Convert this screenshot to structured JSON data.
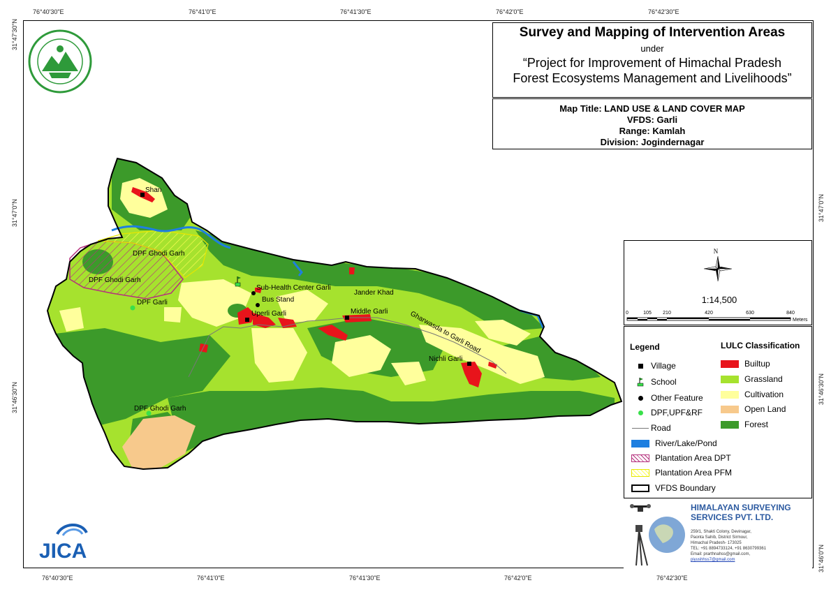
{
  "coords": {
    "top": [
      "76°40'30\"E",
      "76°41'0\"E",
      "76°41'30\"E",
      "76°42'0\"E",
      "76°42'30\"E"
    ],
    "bottom": [
      "76°40'30\"E",
      "76°41'0\"E",
      "76°41'30\"E",
      "76°42'0\"E",
      "76°42'30\"E"
    ],
    "left": [
      "31°47'30\"N",
      "31°47'0\"N",
      "31°46'30\"N"
    ],
    "right": [
      "31°47'0\"N",
      "31°46'30\"N",
      "31°46'0\"N"
    ]
  },
  "title": {
    "main": "Survey and Mapping of Intervention Areas",
    "under": "under",
    "project_line1": "“Project for Improvement of Himachal Pradesh",
    "project_line2": "Forest Ecosystems Management and Livelihoods”"
  },
  "info": {
    "map_title": "Map Title: LAND USE & LAND COVER MAP",
    "vfds": "VFDS: Garli",
    "range": "Range: Kamlah",
    "division": "Division: Jogindernagar"
  },
  "scale": {
    "north": "N",
    "ratio": "1:14,500",
    "ticks": [
      "0",
      "105",
      "210",
      "420",
      "630",
      "840"
    ],
    "unit": "Meters"
  },
  "legend": {
    "title": "Legend",
    "items": [
      "Village",
      "School",
      "Other Feature",
      "DPF,UPF&RF",
      "Road",
      "River/Lake/Pond",
      "Plantation Area DPT",
      "Plantation Area PFM",
      "VFDS Boundary"
    ],
    "lulc_title": "LULC Classification",
    "lulc": [
      {
        "label": "Builtup",
        "color": "#e8141b"
      },
      {
        "label": "Grassland",
        "color": "#a6e22e"
      },
      {
        "label": "Cultivation",
        "color": "#ffff9c"
      },
      {
        "label": "Open Land",
        "color": "#f7c98c"
      },
      {
        "label": "Forest",
        "color": "#3c9a2a"
      }
    ]
  },
  "map_labels": {
    "shan": "Shan",
    "dpf_ghodi_garh_1": "DPF Ghodi Garh",
    "dpf_ghodi_garh_2": "DPF Ghodi Garh",
    "dpf_garli": "DPF Garli",
    "sub_health": "Sub-Health Center Garli",
    "bus_stand": "Bus Stand",
    "uperli_garli": "Uperli Garli",
    "jander_khad": "Jander Khad",
    "middle_garli": "Middle Garli",
    "road": "Gharwasda to Garli Road",
    "nichli_garli": "Nichli Garli",
    "dpf_ghodi_garh_3": "DPF Ghodi Garh"
  },
  "company": {
    "name_line1": "HIMALAYAN SURVEYING",
    "name_line2": "SERVICES PVT. LTD.",
    "address": [
      "259/1, Shakti Colony, Devinagar,",
      "Paonta Sahib, District Sirmour,",
      "Himachal Pradesh- 173025",
      "TEL: +91 8894733124, +91 8630799361",
      "Email: prarthnahss@gmail.com,",
      "piyushhss7@gmail.com"
    ]
  },
  "logos": {
    "jica": "JICA",
    "jica_color": "#1a5fb4",
    "emblem_color": "#2e9a3a"
  }
}
